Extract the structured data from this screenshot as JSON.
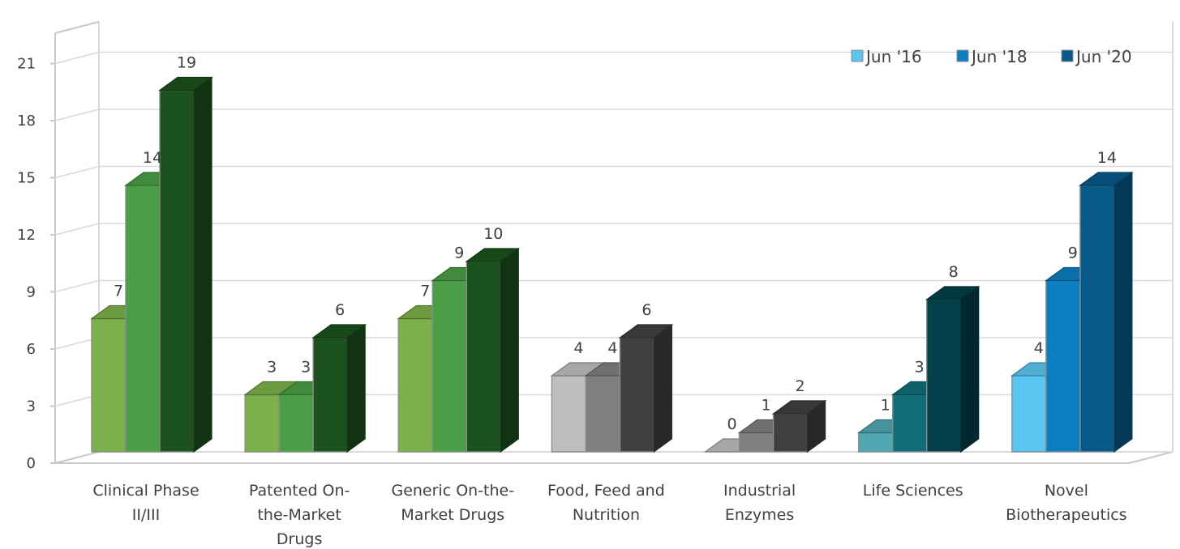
{
  "chart_data": {
    "type": "bar",
    "three_d": true,
    "categories": [
      [
        "Clinical Phase",
        "II/III"
      ],
      [
        "Patented On-",
        "the-Market",
        "Drugs"
      ],
      [
        "Generic On-the-",
        "Market Drugs"
      ],
      [
        "Food, Feed and",
        "Nutrition"
      ],
      [
        "Industrial",
        "Enzymes"
      ],
      [
        "Life Sciences"
      ],
      [
        "Novel",
        "Biotherapeutics"
      ]
    ],
    "series": [
      {
        "name": "Jun '16",
        "values": [
          7,
          3,
          7,
          4,
          0,
          1,
          4
        ]
      },
      {
        "name": "Jun '18",
        "values": [
          14,
          3,
          9,
          4,
          1,
          3,
          9
        ]
      },
      {
        "name": "Jun '20",
        "values": [
          19,
          6,
          10,
          6,
          2,
          8,
          14
        ]
      }
    ],
    "yticks": [
      0,
      3,
      6,
      9,
      12,
      15,
      18,
      21
    ],
    "ylim": [
      0,
      22
    ],
    "grid": true,
    "legend_position": "top-right",
    "legend_colors": [
      "#5BC5F2",
      "#0B7EC0",
      "#085A8A"
    ],
    "bar_colors": [
      [
        "#7CB04A",
        "#4A9E45",
        "#1B521D"
      ],
      [
        "#7CB04A",
        "#4A9E45",
        "#1B521D"
      ],
      [
        "#7CB04A",
        "#4A9E45",
        "#1B521D"
      ],
      [
        "#BEBEBE",
        "#7F7F7F",
        "#404040"
      ],
      [
        "#BEBEBE",
        "#7F7F7F",
        "#404040"
      ],
      [
        "#4FA7B2",
        "#0F6E7A",
        "#02414A"
      ],
      [
        "#5BC5F2",
        "#0B7EC0",
        "#085A8A"
      ]
    ]
  }
}
